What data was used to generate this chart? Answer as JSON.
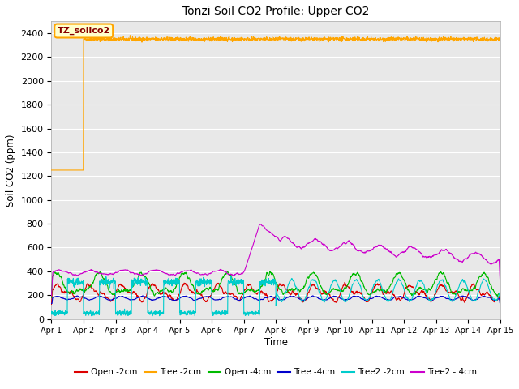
{
  "title": "Tonzi Soil CO2 Profile: Upper CO2",
  "ylabel": "Soil CO2 (ppm)",
  "xlabel": "Time",
  "ylim": [
    0,
    2500
  ],
  "background_color": "#e8e8e8",
  "series": {
    "Open_2cm": {
      "color": "#dd0000",
      "label": "Open -2cm"
    },
    "Tree_2cm": {
      "color": "#ffa500",
      "label": "Tree -2cm"
    },
    "Open_4cm": {
      "color": "#00bb00",
      "label": "Open -4cm"
    },
    "Tree_4cm": {
      "color": "#0000cc",
      "label": "Tree -4cm"
    },
    "Tree2_2cm": {
      "color": "#00cccc",
      "label": "Tree2 -2cm"
    },
    "Tree2_4cm": {
      "color": "#cc00cc",
      "label": "Tree2 - 4cm"
    }
  },
  "annotation": {
    "text": "TZ_soilco2",
    "bg": "#ffffcc",
    "border": "#ffa500"
  },
  "xtick_labels": [
    "Apr 1",
    "Apr 2",
    "Apr 3",
    "Apr 4",
    "Apr 5",
    "Apr 6",
    "Apr 7",
    "Apr 8",
    "Apr 9",
    "Apr 10",
    "Apr 11",
    "Apr 12",
    "Apr 13",
    "Apr 14",
    "Apr 15"
  ],
  "ytick_vals": [
    0,
    200,
    400,
    600,
    800,
    1000,
    1200,
    1400,
    1600,
    1800,
    2000,
    2200,
    2400
  ],
  "n_points": 2016,
  "seed": 42
}
